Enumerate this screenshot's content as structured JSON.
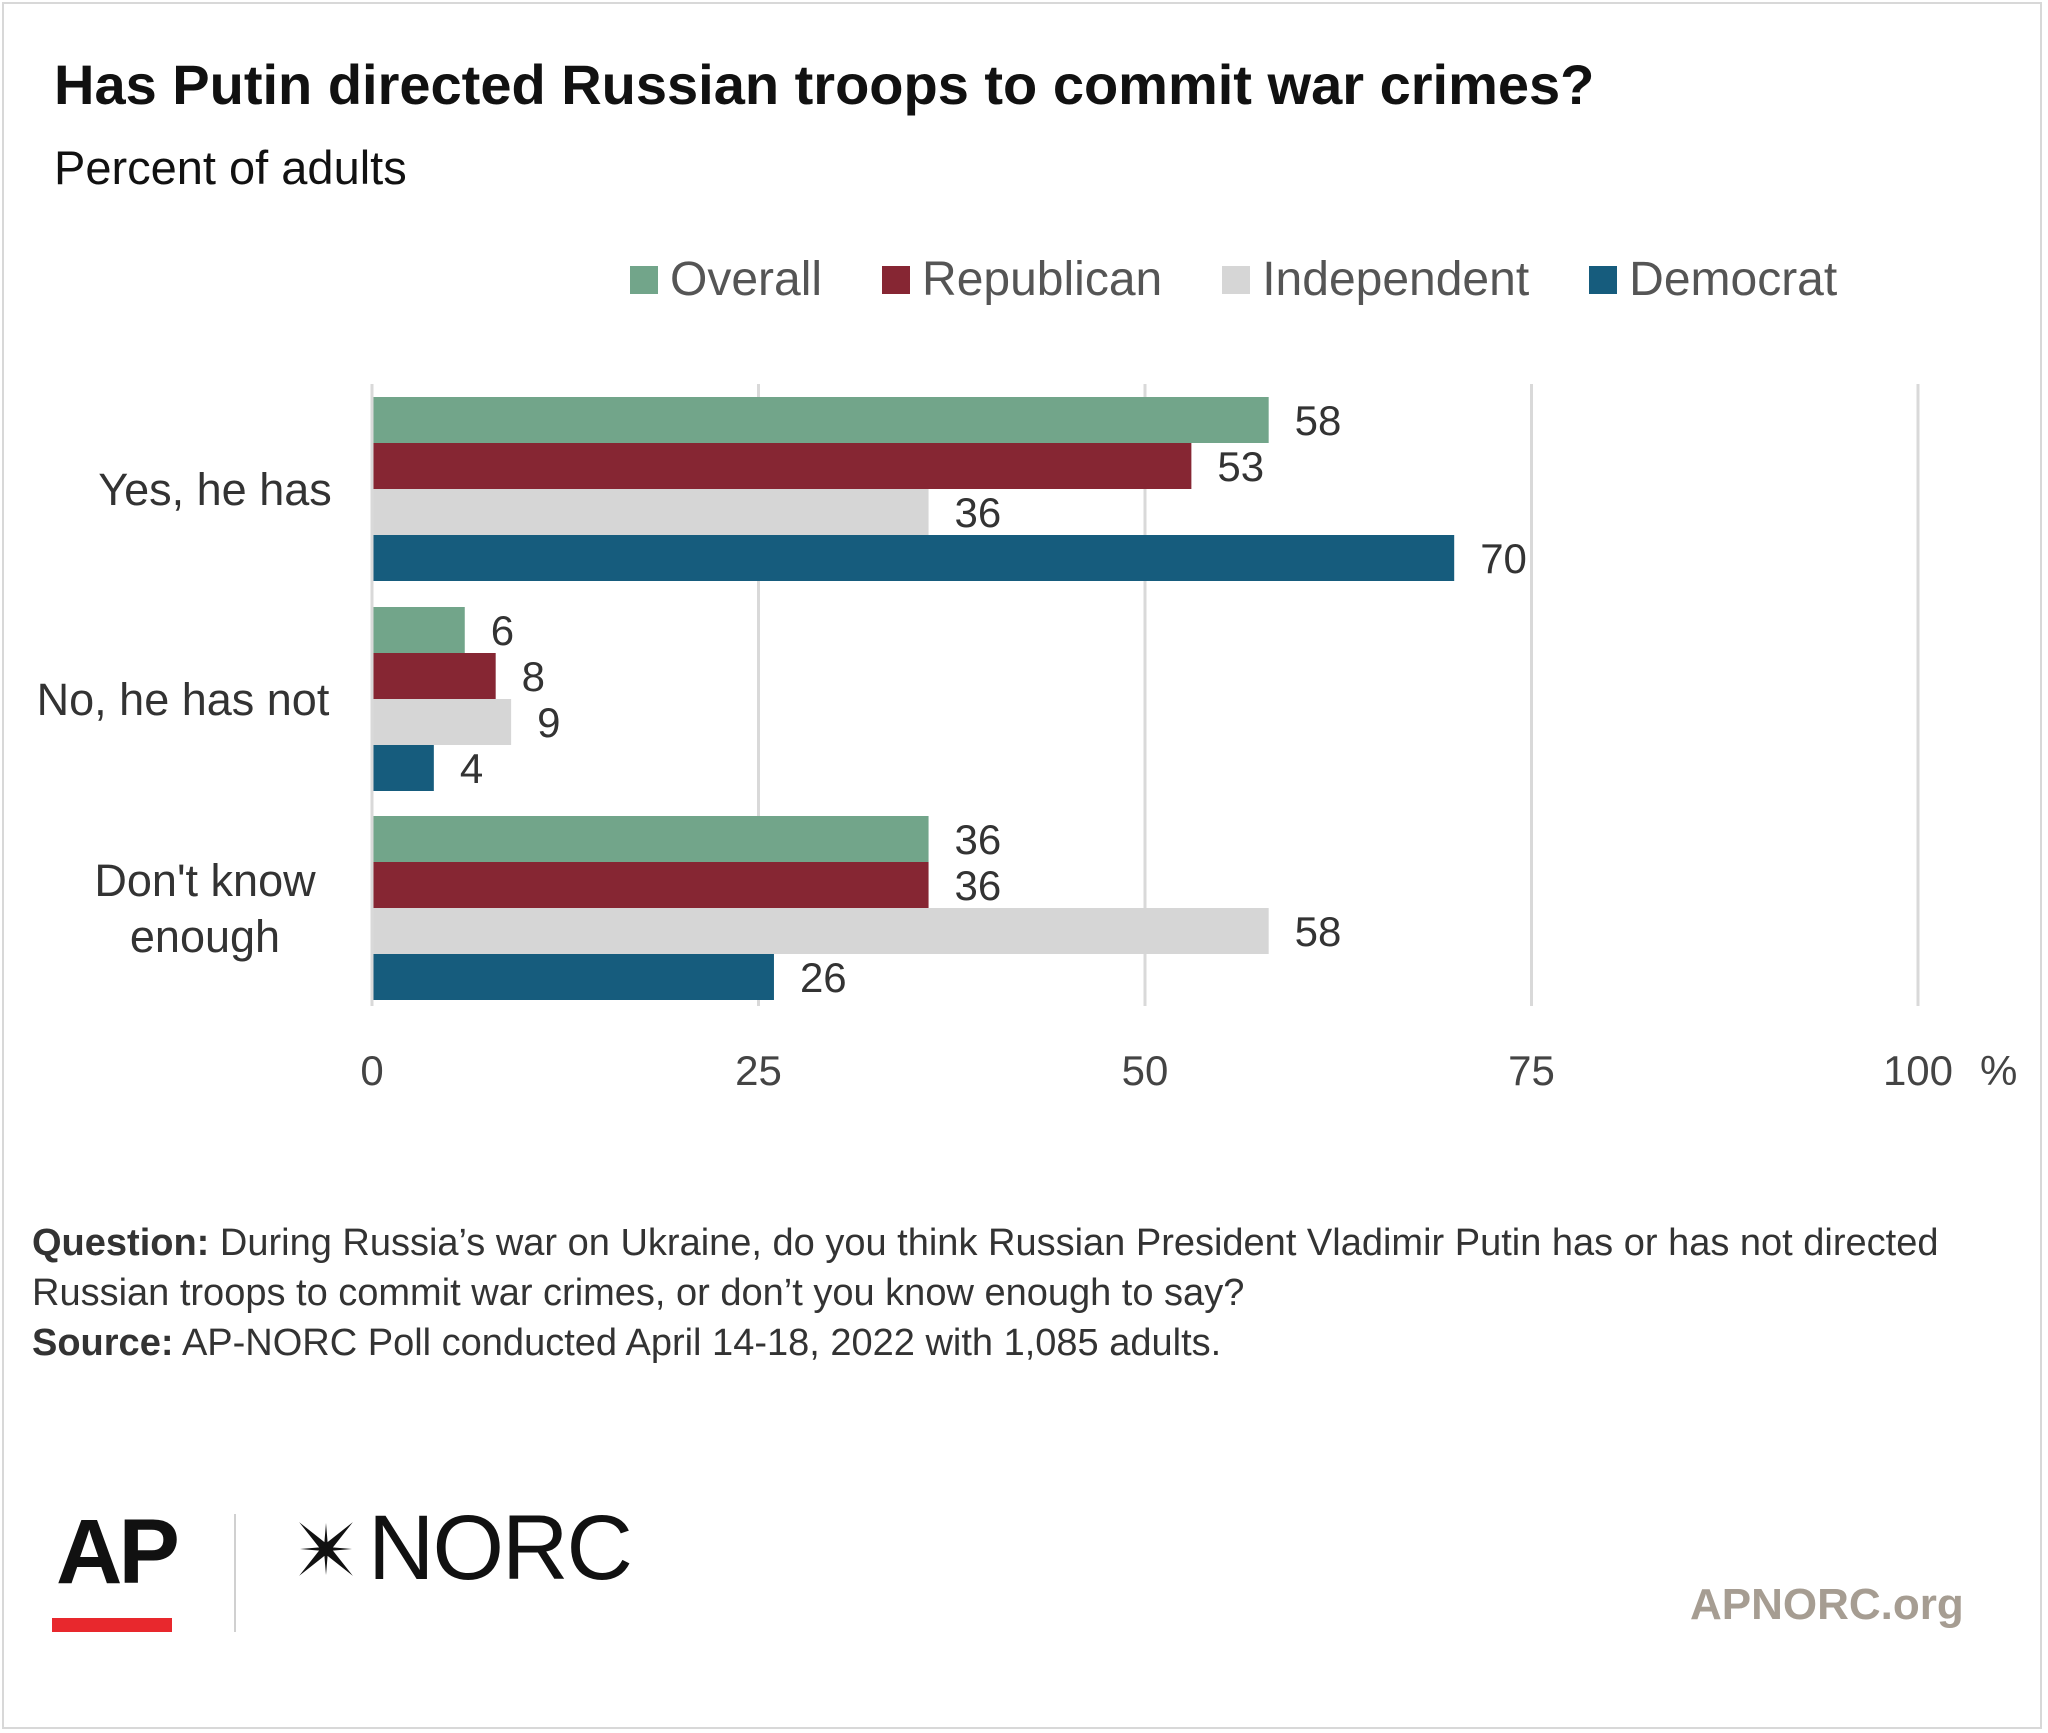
{
  "title": "Has Putin directed Russian troops to commit war crimes?",
  "subtitle": "Percent of adults",
  "colors": {
    "overall": "#72a58a",
    "republican": "#862633",
    "independent": "#d6d6d6",
    "democrat": "#165c7d",
    "grid": "#d9d9d9",
    "ap_red": "#e8282d",
    "site_text": "#a69d92"
  },
  "chart_data": {
    "type": "bar",
    "orientation": "horizontal",
    "categories": [
      "Yes, he has",
      "No, he has not",
      "Don't know enough"
    ],
    "series": [
      {
        "name": "Overall",
        "color": "#72a58a",
        "values": [
          58,
          6,
          36
        ]
      },
      {
        "name": "Republican",
        "color": "#862633",
        "values": [
          53,
          8,
          36
        ]
      },
      {
        "name": "Independent",
        "color": "#d6d6d6",
        "values": [
          36,
          9,
          58
        ]
      },
      {
        "name": "Democrat",
        "color": "#165c7d",
        "values": [
          70,
          4,
          26
        ]
      }
    ],
    "xlim": [
      0,
      100
    ],
    "xticks": [
      "0",
      "25",
      "50",
      "75",
      "100"
    ],
    "xunit": "%",
    "grid": true,
    "legend": "top"
  },
  "footnote": {
    "question_label": "Question:",
    "question_text": "During Russia’s war on Ukraine, do you think Russian President Vladimir Putin has or has not directed Russian troops to commit war crimes, or don’t you know enough to say?",
    "source_label": "Source:",
    "source_text": "AP-NORC Poll conducted April 14-18, 2022 with 1,085 adults."
  },
  "logos": {
    "ap": "AP",
    "norc": "NORC"
  },
  "site": "APNORC.org"
}
